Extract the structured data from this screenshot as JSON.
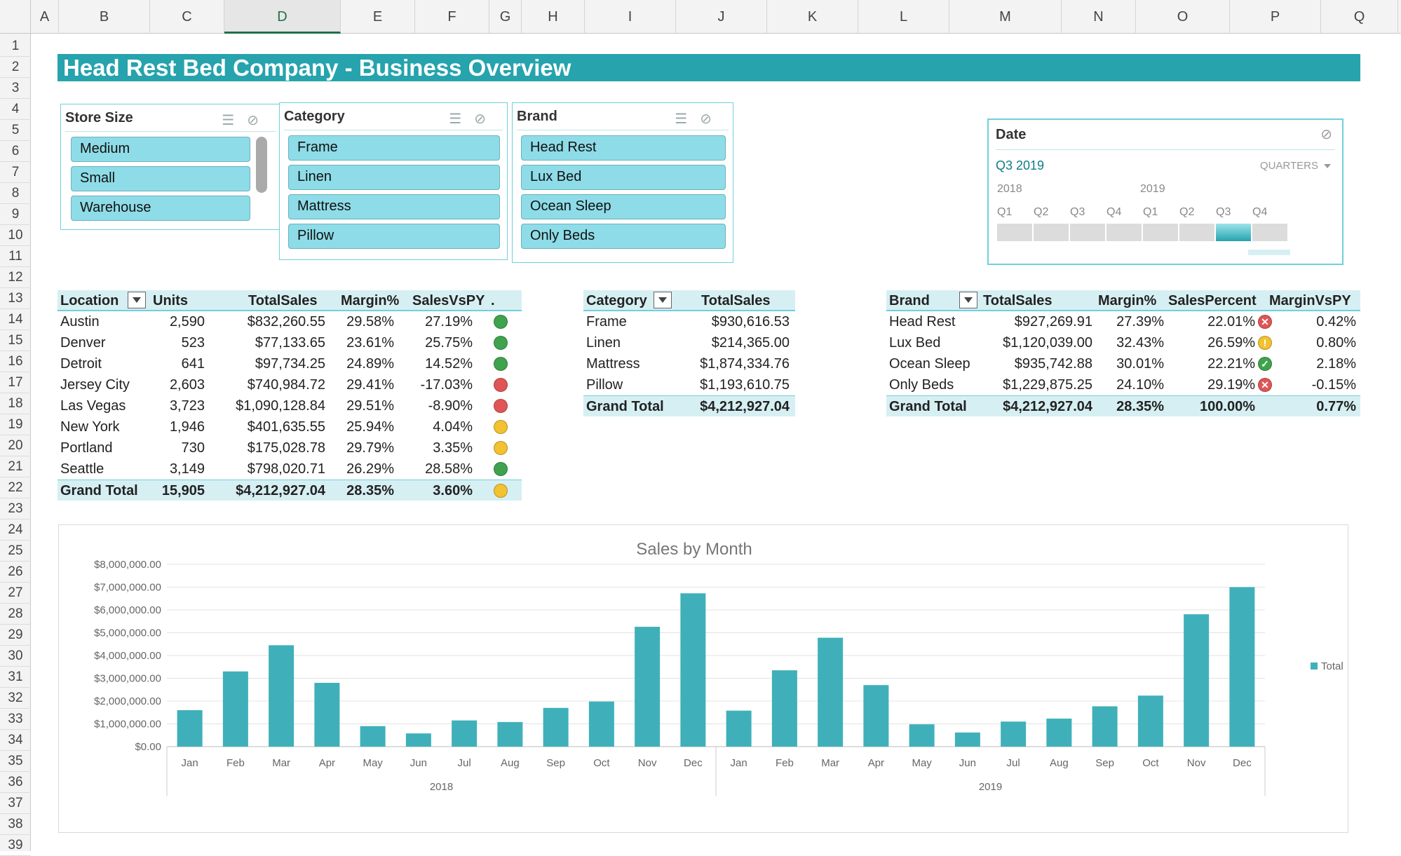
{
  "sheet": {
    "columns": [
      "A",
      "B",
      "C",
      "D",
      "E",
      "F",
      "G",
      "H",
      "I",
      "J",
      "K",
      "L",
      "M",
      "N",
      "O",
      "P",
      "Q"
    ],
    "selected_column": "D",
    "rows": [
      "1",
      "2",
      "3",
      "4",
      "5",
      "6",
      "7",
      "8",
      "9",
      "10",
      "11",
      "12",
      "13",
      "14",
      "15",
      "16",
      "17",
      "18",
      "19",
      "20",
      "21",
      "22",
      "23",
      "24",
      "25",
      "26",
      "27",
      "28",
      "29",
      "30",
      "31",
      "32",
      "33",
      "34",
      "35",
      "36",
      "37",
      "38",
      "39"
    ]
  },
  "title": "Head Rest Bed Company - Business Overview",
  "slicers": {
    "store_size": {
      "header": "Store Size",
      "items": [
        "Medium",
        "Small",
        "Warehouse"
      ]
    },
    "category": {
      "header": "Category",
      "items": [
        "Frame",
        "Linen",
        "Mattress",
        "Pillow"
      ]
    },
    "brand": {
      "header": "Brand",
      "items": [
        "Head Rest",
        "Lux Bed",
        "Ocean Sleep",
        "Only Beds"
      ]
    }
  },
  "date_timeline": {
    "header": "Date",
    "selected": "Q3 2019",
    "level": "QUARTERS",
    "years": [
      "2018",
      "2019"
    ],
    "quarters": [
      "Q1",
      "Q2",
      "Q3",
      "Q4",
      "Q1",
      "Q2",
      "Q3",
      "Q4"
    ],
    "selected_index": 6
  },
  "location_table": {
    "headers": [
      "Location",
      "Units",
      "TotalSales",
      "Margin%",
      "SalesVsPY",
      "."
    ],
    "rows": [
      {
        "location": "Austin",
        "units": "2,590",
        "sales": "$832,260.55",
        "margin": "29.58%",
        "vspy": "27.19%",
        "status": "green"
      },
      {
        "location": "Denver",
        "units": "523",
        "sales": "$77,133.65",
        "margin": "23.61%",
        "vspy": "25.75%",
        "status": "green"
      },
      {
        "location": "Detroit",
        "units": "641",
        "sales": "$97,734.25",
        "margin": "24.89%",
        "vspy": "14.52%",
        "status": "green"
      },
      {
        "location": "Jersey City",
        "units": "2,603",
        "sales": "$740,984.72",
        "margin": "29.41%",
        "vspy": "-17.03%",
        "status": "red"
      },
      {
        "location": "Las Vegas",
        "units": "3,723",
        "sales": "$1,090,128.84",
        "margin": "29.51%",
        "vspy": "-8.90%",
        "status": "red"
      },
      {
        "location": "New York",
        "units": "1,946",
        "sales": "$401,635.55",
        "margin": "25.94%",
        "vspy": "4.04%",
        "status": "yellow"
      },
      {
        "location": "Portland",
        "units": "730",
        "sales": "$175,028.78",
        "margin": "29.79%",
        "vspy": "3.35%",
        "status": "yellow"
      },
      {
        "location": "Seattle",
        "units": "3,149",
        "sales": "$798,020.71",
        "margin": "26.29%",
        "vspy": "28.58%",
        "status": "green"
      }
    ],
    "total": {
      "location": "Grand Total",
      "units": "15,905",
      "sales": "$4,212,927.04",
      "margin": "28.35%",
      "vspy": "3.60%",
      "status": "yellow"
    }
  },
  "category_table": {
    "headers": [
      "Category",
      "TotalSales"
    ],
    "rows": [
      {
        "category": "Frame",
        "sales": "$930,616.53"
      },
      {
        "category": "Linen",
        "sales": "$214,365.00"
      },
      {
        "category": "Mattress",
        "sales": "$1,874,334.76"
      },
      {
        "category": "Pillow",
        "sales": "$1,193,610.75"
      }
    ],
    "total": {
      "category": "Grand Total",
      "sales": "$4,212,927.04"
    }
  },
  "brand_table": {
    "headers": [
      "Brand",
      "TotalSales",
      "Margin%",
      "SalesPercent",
      "MarginVsPY"
    ],
    "rows": [
      {
        "brand": "Head Rest",
        "sales": "$927,269.91",
        "margin": "27.39%",
        "pct": "22.01%",
        "vspy": "0.42%",
        "status": "x-red"
      },
      {
        "brand": "Lux Bed",
        "sales": "$1,120,039.00",
        "margin": "32.43%",
        "pct": "26.59%",
        "vspy": "0.80%",
        "status": "excl-yellow"
      },
      {
        "brand": "Ocean Sleep",
        "sales": "$935,742.88",
        "margin": "30.01%",
        "pct": "22.21%",
        "vspy": "2.18%",
        "status": "check-green"
      },
      {
        "brand": "Only Beds",
        "sales": "$1,229,875.25",
        "margin": "24.10%",
        "pct": "29.19%",
        "vspy": "-0.15%",
        "status": "x-red"
      }
    ],
    "total": {
      "brand": "Grand Total",
      "sales": "$4,212,927.04",
      "margin": "28.35%",
      "pct": "100.00%",
      "vspy": "0.77%"
    }
  },
  "colors": {
    "accent": "#26a3ad",
    "bar": "#3fb0ba",
    "green": "#3fa34d",
    "red": "#e05555",
    "yellow": "#f2c230"
  },
  "chart_data": {
    "type": "bar",
    "title": "Sales by Month",
    "categories": [
      "Jan",
      "Feb",
      "Mar",
      "Apr",
      "May",
      "Jun",
      "Jul",
      "Aug",
      "Sep",
      "Oct",
      "Nov",
      "Dec",
      "Jan",
      "Feb",
      "Mar",
      "Apr",
      "May",
      "Jun",
      "Jul",
      "Aug",
      "Sep",
      "Oct",
      "Nov",
      "Dec"
    ],
    "groups": [
      {
        "label": "2018",
        "count": 12
      },
      {
        "label": "2019",
        "count": 12
      }
    ],
    "series": [
      {
        "name": "Total",
        "values": [
          1600000,
          3300000,
          4450000,
          2800000,
          900000,
          580000,
          1150000,
          1080000,
          1700000,
          1980000,
          5260000,
          6730000,
          1580000,
          3350000,
          4780000,
          2700000,
          980000,
          620000,
          1100000,
          1230000,
          1770000,
          2240000,
          5810000,
          7000000
        ]
      }
    ],
    "yticks": [
      "$0.00",
      "$1,000,000.00",
      "$2,000,000.00",
      "$3,000,000.00",
      "$4,000,000.00",
      "$5,000,000.00",
      "$6,000,000.00",
      "$7,000,000.00",
      "$8,000,000.00"
    ],
    "ylim": [
      0,
      8000000
    ],
    "legend": "right"
  }
}
